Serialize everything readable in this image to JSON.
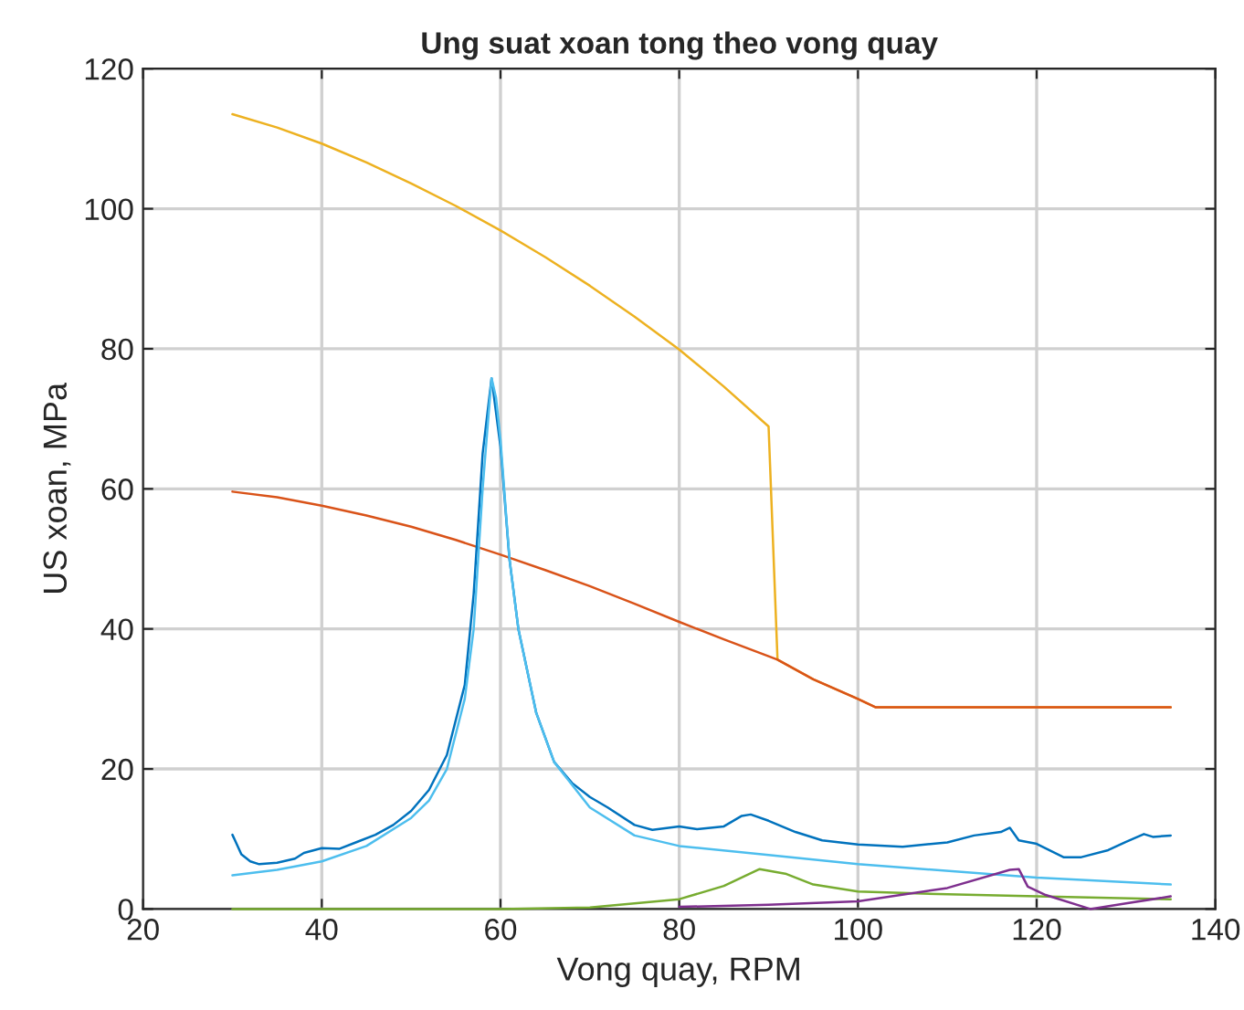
{
  "chart_data": {
    "type": "line",
    "title": "Ung suat xoan tong theo vong quay",
    "xlabel": "Vong quay, RPM",
    "ylabel": "US xoan, MPa",
    "xlim": [
      20,
      140
    ],
    "ylim": [
      0,
      120
    ],
    "xticks": [
      20,
      40,
      60,
      80,
      100,
      120,
      140
    ],
    "yticks": [
      0,
      20,
      40,
      60,
      80,
      100,
      120
    ],
    "grid": true,
    "marker": "none",
    "line_style": "solid",
    "series": [
      {
        "color": "#edb120",
        "x": [
          30,
          35,
          40,
          45,
          50,
          55,
          60,
          65,
          70,
          75,
          80,
          85,
          90,
          91,
          95,
          100,
          102,
          135
        ],
        "values": [
          113.5,
          111.6,
          109.3,
          106.6,
          103.6,
          100.4,
          96.9,
          93.1,
          89,
          84.6,
          79.9,
          74.6,
          68.9,
          35.6,
          32.8,
          30.0,
          28.8,
          28.8
        ]
      },
      {
        "color": "#d95319",
        "x": [
          30,
          35,
          40,
          45,
          50,
          55,
          60,
          65,
          70,
          75,
          80,
          85,
          90,
          91,
          95,
          100,
          102,
          135
        ],
        "values": [
          59.6,
          58.8,
          57.6,
          56.2,
          54.6,
          52.7,
          50.6,
          48.4,
          46.1,
          43.6,
          41.0,
          38.5,
          36.1,
          35.6,
          32.8,
          30.0,
          28.8,
          28.8
        ]
      },
      {
        "color": "#0072bd",
        "x": [
          30,
          31,
          32,
          33,
          35,
          37,
          38,
          40,
          42,
          44,
          46,
          48,
          50,
          52,
          54,
          56,
          57,
          58,
          59,
          60,
          61,
          62,
          64,
          66,
          68,
          70,
          72,
          75,
          77,
          80,
          82,
          85,
          87,
          88,
          90,
          93,
          96,
          100,
          105,
          110,
          113,
          116,
          117,
          118,
          120,
          123,
          125,
          128,
          130,
          132,
          133,
          135
        ],
        "values": [
          10.6,
          7.8,
          6.8,
          6.4,
          6.6,
          7.2,
          8,
          8.7,
          8.6,
          9.6,
          10.6,
          12,
          14,
          17,
          22,
          32,
          45,
          65,
          75.8,
          66,
          50,
          40,
          28,
          21,
          18,
          16,
          14.5,
          12,
          11.3,
          11.8,
          11.4,
          11.8,
          13.3,
          13.5,
          12.6,
          11,
          9.8,
          9.2,
          8.9,
          9.5,
          10.5,
          11,
          11.6,
          9.8,
          9.3,
          7.4,
          7.4,
          8.4,
          9.6,
          10.7,
          10.3,
          10.5
        ]
      },
      {
        "color": "#4dbeee",
        "x": [
          30,
          35,
          40,
          45,
          50,
          52,
          54,
          56,
          57,
          58,
          58.5,
          59,
          59.5,
          60,
          61,
          62,
          64,
          66,
          70,
          75,
          80,
          90,
          100,
          120,
          135
        ],
        "values": [
          4.8,
          5.6,
          6.8,
          9.0,
          13,
          15.5,
          20,
          30,
          40,
          60,
          68,
          75.8,
          73,
          67,
          50,
          40,
          28,
          21,
          14.5,
          10.5,
          9.0,
          7.7,
          6.4,
          4.5,
          3.5
        ]
      },
      {
        "color": "#77ac30",
        "x": [
          30,
          60,
          70,
          80,
          85,
          89,
          92,
          95,
          100,
          110,
          120,
          135
        ],
        "values": [
          0,
          0,
          0.2,
          1.4,
          3.3,
          5.7,
          5,
          3.5,
          2.5,
          2.1,
          1.8,
          1.4
        ]
      },
      {
        "color": "#7e2f8e",
        "x": [
          80,
          90,
          100,
          110,
          117,
          118,
          119,
          121,
          126,
          130,
          135
        ],
        "values": [
          0.3,
          0.6,
          1.1,
          3.0,
          5.6,
          5.7,
          3.2,
          2.0,
          0,
          0.8,
          1.8
        ]
      }
    ]
  }
}
